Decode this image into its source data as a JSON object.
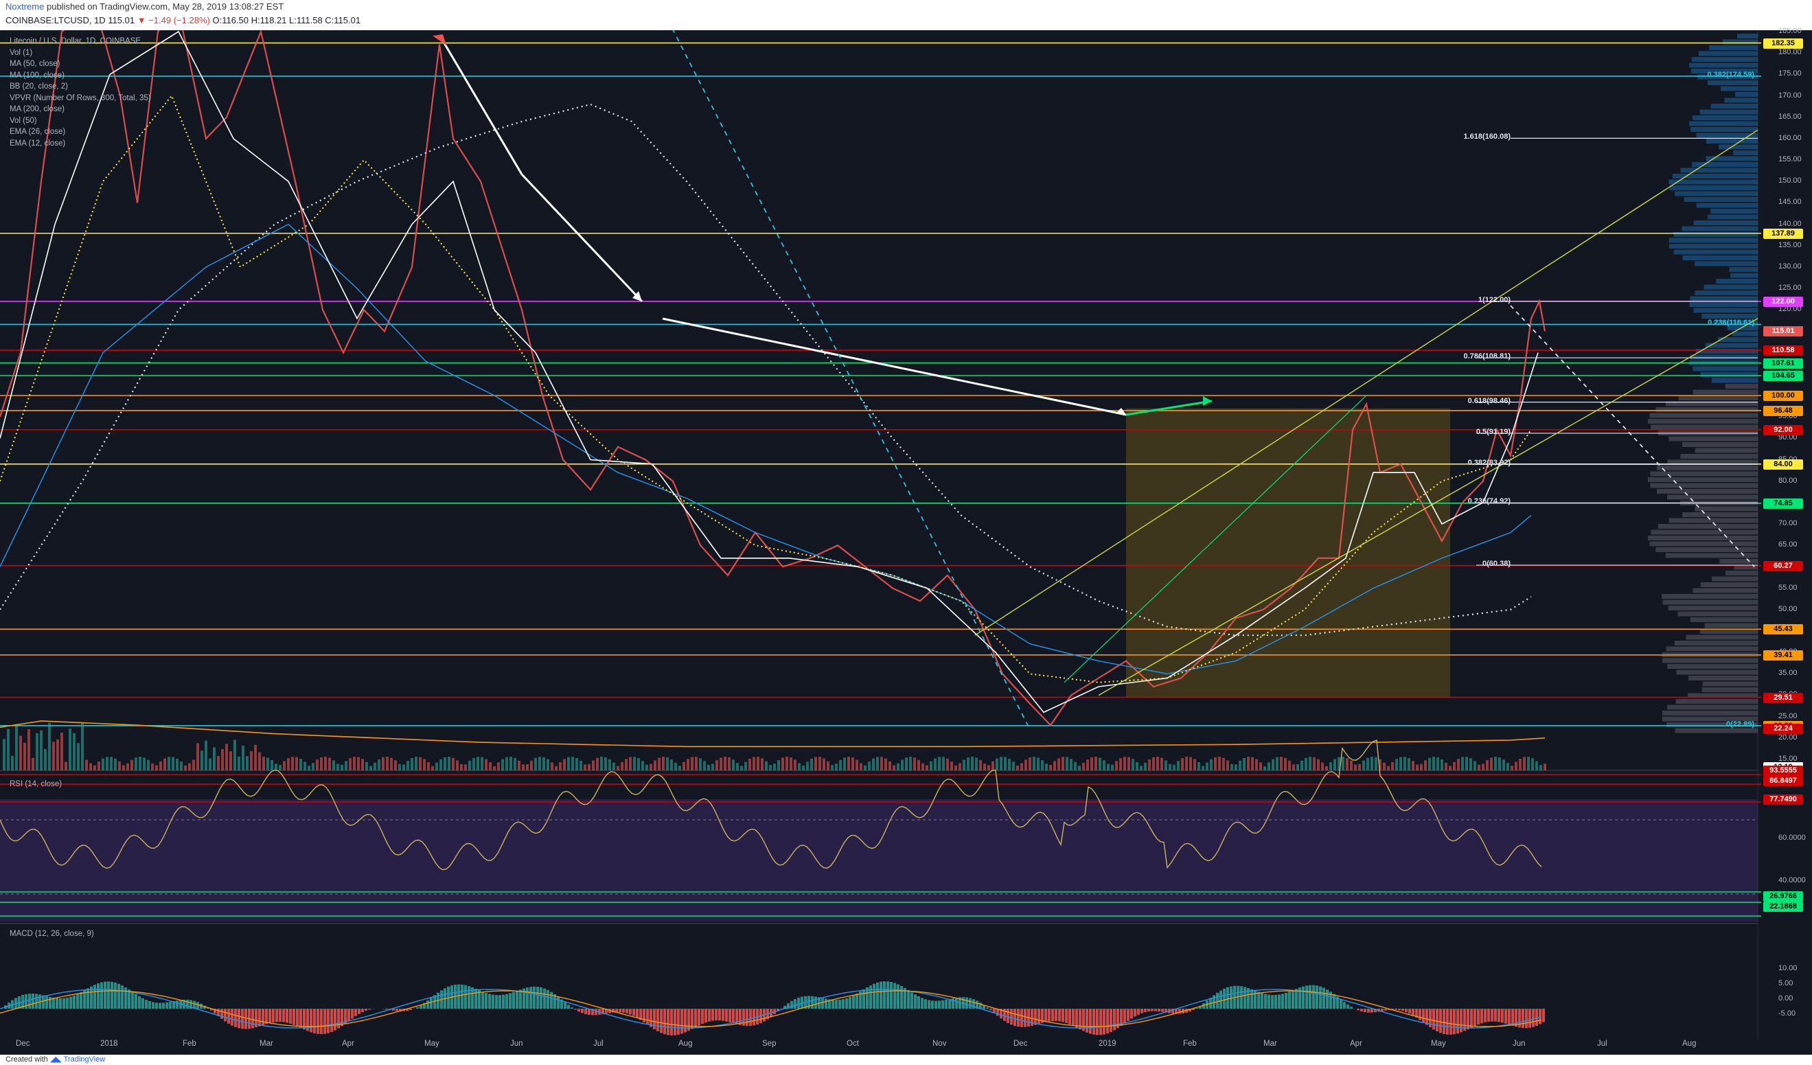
{
  "header": {
    "publisher": "Noxtreme",
    "published_text": "published on TradingView.com, May 28, 2019 13:08:27 EST",
    "symbol": "COINBASE:LTCUSD, 1D",
    "price": "115.01",
    "change": "▼ −1.49 (−1.28%)",
    "ohlc": "O:116.50 H:118.21 L:111.58 C:115.01"
  },
  "indicators": [
    "Litecoin / U.S. Dollar, 1D, COINBASE",
    "Vol (1)",
    "MA (50, close)",
    "MA (100, close)",
    "BB (20, close, 2)",
    "VPVR (Number Of Rows, 300, Total, 35)",
    "MA (200, close)",
    "Vol (50)",
    "EMA (26, close)",
    "EMA (12, close)"
  ],
  "rsi_label": "RSI (14, close)",
  "macd_label": "MACD (12, 26, close, 9)",
  "x_labels": [
    "Dec",
    "2018",
    "Feb",
    "Mar",
    "Apr",
    "May",
    "Jun",
    "Jul",
    "Aug",
    "Sep",
    "Oct",
    "Nov",
    "Dec",
    "2019",
    "Feb",
    "Mar",
    "Apr",
    "May",
    "Jun",
    "Jul",
    "Aug"
  ],
  "y_labels": [
    "185.00",
    "180.00",
    "175.00",
    "170.00",
    "165.00",
    "160.00",
    "155.00",
    "150.00",
    "145.00",
    "140.00",
    "135.00",
    "130.00",
    "125.00",
    "120.00",
    "115.00",
    "110.00",
    "105.00",
    "100.00",
    "95.00",
    "90.00",
    "85.00",
    "80.00",
    "75.00",
    "70.00",
    "65.00",
    "60.00",
    "55.00",
    "50.00",
    "45.00",
    "40.00",
    "35.00",
    "30.00",
    "25.00",
    "20.00",
    "15.00"
  ],
  "rsi_y_labels": [
    "60.0000",
    "40.0000"
  ],
  "macd_y_labels": [
    "10.00",
    "5.00",
    "0.00",
    "-5.00"
  ],
  "price_tags": [
    {
      "text": "182.35",
      "bg": "#ffeb3b",
      "fg": "#000"
    },
    {
      "text": "137.89",
      "bg": "#ffeb3b",
      "fg": "#000"
    },
    {
      "text": "122.00",
      "bg": "#e040fb",
      "fg": "#fff"
    },
    {
      "text": "115.01",
      "bg": "#ef5350",
      "fg": "#fff"
    },
    {
      "text": "110.58",
      "bg": "#d50000",
      "fg": "#fff"
    },
    {
      "text": "107.61",
      "bg": "#00e676",
      "fg": "#000"
    },
    {
      "text": "104.65",
      "bg": "#00e676",
      "fg": "#000"
    },
    {
      "text": "100.00",
      "bg": "#ff9800",
      "fg": "#000"
    },
    {
      "text": "96.48",
      "bg": "#ff9800",
      "fg": "#000"
    },
    {
      "text": "92.00",
      "bg": "#d50000",
      "fg": "#fff"
    },
    {
      "text": "84.00",
      "bg": "#ffeb3b",
      "fg": "#000"
    },
    {
      "text": "74.85",
      "bg": "#00e676",
      "fg": "#000"
    },
    {
      "text": "60.27",
      "bg": "#d50000",
      "fg": "#fff"
    },
    {
      "text": "45.43",
      "bg": "#ff9800",
      "fg": "#000"
    },
    {
      "text": "39.41",
      "bg": "#ff9800",
      "fg": "#000"
    },
    {
      "text": "29.51",
      "bg": "#d50000",
      "fg": "#fff"
    },
    {
      "text": "22.89",
      "bg": "#ff9800",
      "fg": "#000"
    },
    {
      "text": "22.24",
      "bg": "#d50000",
      "fg": "#fff"
    },
    {
      "text": "13.19",
      "bg": "#ffffff",
      "fg": "#000"
    }
  ],
  "rsi_tags": [
    {
      "text": "93.5555",
      "bg": "#d50000",
      "fg": "#fff"
    },
    {
      "text": "86.8497",
      "bg": "#d50000",
      "fg": "#fff"
    },
    {
      "text": "77.7490",
      "bg": "#d50000",
      "fg": "#fff"
    },
    {
      "text": "26.9766",
      "bg": "#00e676",
      "fg": "#000"
    },
    {
      "text": "22.1868",
      "bg": "#00e676",
      "fg": "#000"
    }
  ],
  "fib_levels": [
    {
      "text": "1.618(160.08)"
    },
    {
      "text": "1(122.00)"
    },
    {
      "text": "0.786(108.81)"
    },
    {
      "text": "0.618(98.46)"
    },
    {
      "text": "0.5(91.19)"
    },
    {
      "text": "0.382(83.92)"
    },
    {
      "text": "0.236(74.92)"
    },
    {
      "text": "0(60.38)"
    }
  ],
  "fib_right_labels": [
    "0.382(174.59)",
    "0.236(116.61)",
    "0(22.89)"
  ],
  "footer": {
    "created": "Created with",
    "brand": "TradingView"
  }
}
